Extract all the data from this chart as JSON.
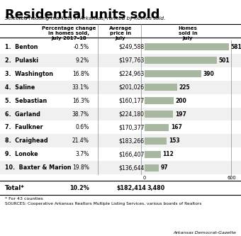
{
  "title": "Residential units sold",
  "subtitle": "Selected housing markets in Arkansas, ranked by homes sold.",
  "col1_header": "Percentage change\nin homes sold,\nJuly 2017–18",
  "col2_header": "Average\nprice in\nJuly",
  "col3_header": "Homes\nsold in\nJuly",
  "rows": [
    {
      "rank": 1,
      "name": "Benton",
      "pct": "-0.5%",
      "price": "$249,588",
      "sold": 581
    },
    {
      "rank": 2,
      "name": "Pulaski",
      "pct": "9.2%",
      "price": "$197,763",
      "sold": 501
    },
    {
      "rank": 3,
      "name": "Washington",
      "pct": "16.8%",
      "price": "$224,963",
      "sold": 390
    },
    {
      "rank": 4,
      "name": "Saline",
      "pct": "33.1%",
      "price": "$201,026",
      "sold": 225
    },
    {
      "rank": 5,
      "name": "Sebastian",
      "pct": "16.3%",
      "price": "$160,177",
      "sold": 200
    },
    {
      "rank": 6,
      "name": "Garland",
      "pct": "38.7%",
      "price": "$224,180",
      "sold": 197
    },
    {
      "rank": 7,
      "name": "Faulkner",
      "pct": "0.6%",
      "price": "$170,377",
      "sold": 167
    },
    {
      "rank": 8,
      "name": "Craighead",
      "pct": "21.4%",
      "price": "$183,266",
      "sold": 153
    },
    {
      "rank": 9,
      "name": "Lonoke",
      "pct": "3.7%",
      "price": "$166,407",
      "sold": 112
    },
    {
      "rank": 10,
      "name": "Baxter & Marion",
      "pct": "19.8%",
      "price": "$136,644",
      "sold": 97
    }
  ],
  "total_pct": "10.2%",
  "total_price": "$182,414",
  "total_sold": "3,480",
  "footnote": "* For 43 counties",
  "source": "SOURCES: Cooperative Arkansas Realtors Multiple Listing Services, various boards of Realtors",
  "credit": "Arkansas Democrat-Gazette",
  "bar_color": "#a8b8a0",
  "bar_max": 600,
  "background_color": "#ffffff"
}
